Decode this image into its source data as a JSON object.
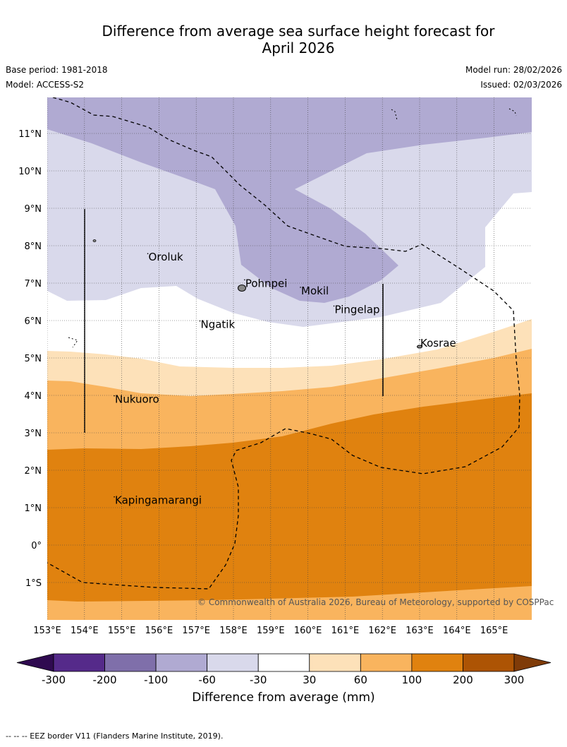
{
  "header": {
    "title_line1": "Difference from average sea surface height forecast for",
    "title_line2": "April 2026",
    "base_period": "Base period: 1981-2018",
    "model": "Model: ACCESS-S2",
    "model_run": "Model run: 28/02/2026",
    "issued": "Issued: 02/03/2026"
  },
  "map": {
    "lat_labels": [
      "11°N",
      "10°N",
      "9°N",
      "8°N",
      "7°N",
      "6°N",
      "5°N",
      "4°N",
      "3°N",
      "2°N",
      "1°N",
      "0°",
      "1°S"
    ],
    "lon_labels": [
      "153°E",
      "154°E",
      "155°E",
      "156°E",
      "157°E",
      "158°E",
      "159°E",
      "160°E",
      "161°E",
      "162°E",
      "163°E",
      "164°E",
      "165°E"
    ],
    "places": [
      {
        "name": "Oroluk",
        "lon": 155.7,
        "lat": 7.6
      },
      {
        "name": "Pohnpei",
        "lon": 158.3,
        "lat": 6.9
      },
      {
        "name": "Mokil",
        "lon": 159.8,
        "lat": 6.7
      },
      {
        "name": "Pingelap",
        "lon": 160.7,
        "lat": 6.2
      },
      {
        "name": "Ngatik",
        "lon": 157.1,
        "lat": 5.8
      },
      {
        "name": "Kosrae",
        "lon": 163.0,
        "lat": 5.3
      },
      {
        "name": "Nukuoro",
        "lon": 154.8,
        "lat": 3.8
      },
      {
        "name": "Kapingamarangi",
        "lon": 154.8,
        "lat": 1.1
      }
    ],
    "copyright": "© Commonwealth of Australia 2026, Bureau of Meteorology, supported by COSPPac"
  },
  "colorbar": {
    "title": "Difference from average (mm)",
    "ticks": [
      "-300",
      "-200",
      "-100",
      "-60",
      "-30",
      "30",
      "60",
      "100",
      "200",
      "300"
    ],
    "colors": [
      "#552a8a",
      "#7f6faa",
      "#b0aad2",
      "#d9d9eb",
      "#ffffff",
      "#fde1b9",
      "#f9b45e",
      "#e0820f",
      "#ad5404"
    ],
    "extend_low": "#2f0a50",
    "extend_high": "#7f3b08"
  },
  "footer": {
    "eez_note": "--  --  -- EEZ border V11 (Flanders Marine Institute, 2019)."
  }
}
